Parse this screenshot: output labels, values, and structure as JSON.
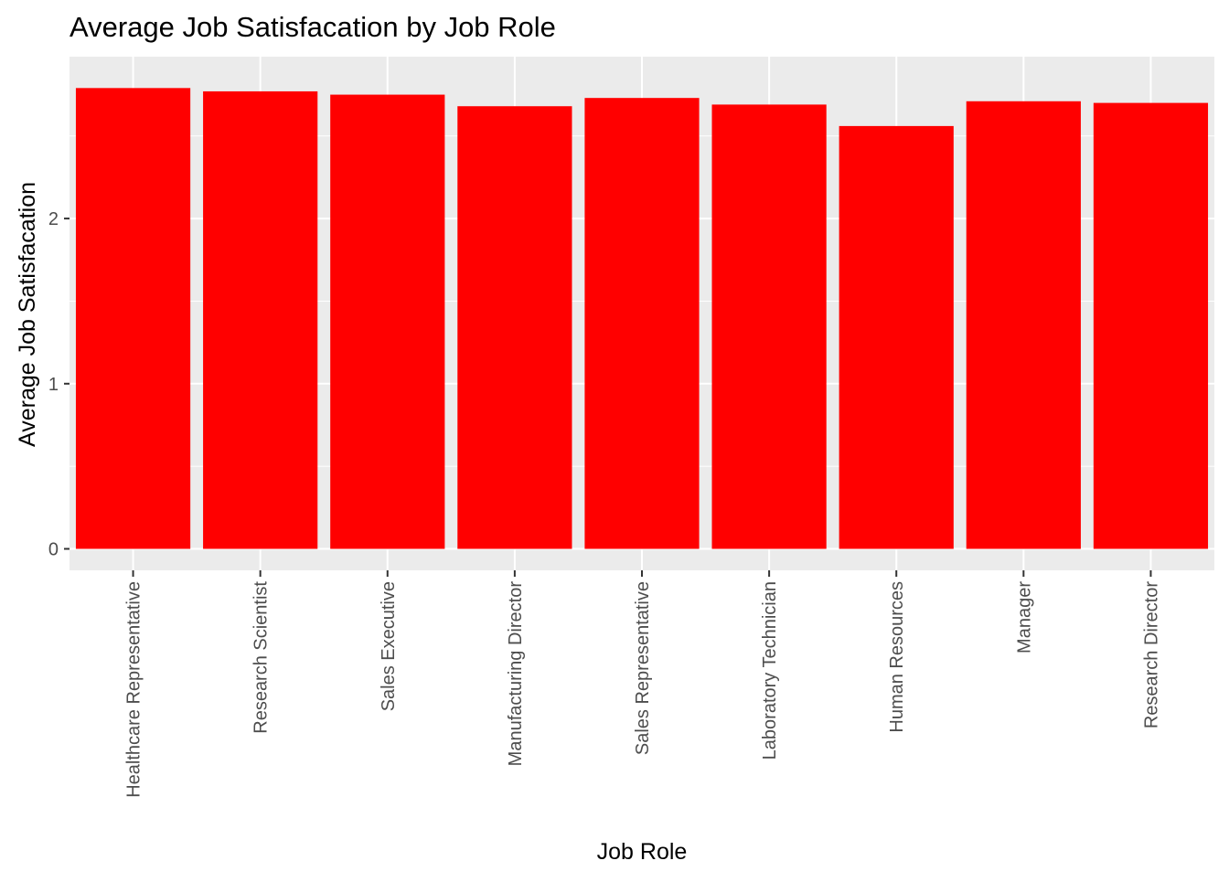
{
  "chart_data": {
    "type": "bar",
    "title": "Average Job Satisfacation by Job Role",
    "xlabel": "Job Role",
    "ylabel": "Average Job Satisfacation",
    "categories": [
      "Healthcare Representative",
      "Research Scientist",
      "Sales Executive",
      "Manufacturing Director",
      "Sales Representative",
      "Laboratory Technician",
      "Human Resources",
      "Manager",
      "Research Director"
    ],
    "values": [
      2.79,
      2.77,
      2.75,
      2.68,
      2.73,
      2.69,
      2.56,
      2.71,
      2.7
    ],
    "ylim": [
      -0.13,
      2.98
    ],
    "yticks": [
      0,
      1,
      2
    ],
    "ytick_labels": [
      "0",
      "1",
      "2"
    ],
    "bar_color": "#ff0000",
    "panel_color": "#ebebeb",
    "grid": true,
    "legend": "none"
  }
}
